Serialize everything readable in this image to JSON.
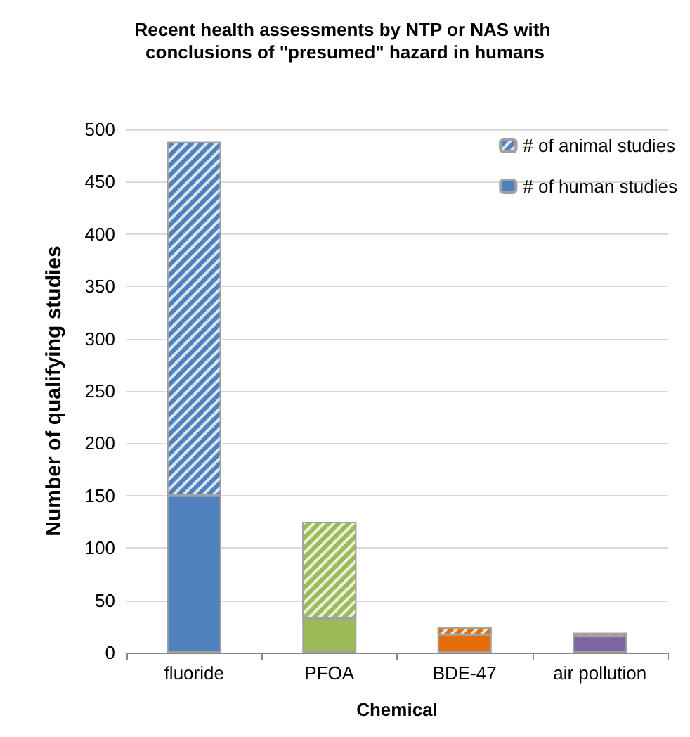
{
  "chart_data": {
    "type": "bar",
    "title": "Recent health assessments by NTP or NAS with conclusions of \"presumed\" hazard in humans",
    "xlabel": "Chemical",
    "ylabel": "Number of qualifying studies",
    "categories": [
      "fluoride",
      "PFOA",
      "BDE-47",
      "air pollution"
    ],
    "stacked": true,
    "series": [
      {
        "name": "# of human studies",
        "colors": [
          "#4f81bd",
          "#9bbb59",
          "#e46c0a",
          "#8064a2"
        ],
        "values": [
          150,
          33,
          17,
          16
        ]
      },
      {
        "name": "# of animal studies",
        "colors": [
          "#4f81bd",
          "#9bbb59",
          "#e46c0a",
          "#8064a2"
        ],
        "values": [
          338,
          92,
          7,
          3
        ]
      }
    ],
    "ylim": [
      0,
      500
    ],
    "yticks": [
      0,
      50,
      100,
      150,
      200,
      250,
      300,
      350,
      400,
      450,
      500
    ],
    "grid": "y",
    "legend": "top right"
  }
}
